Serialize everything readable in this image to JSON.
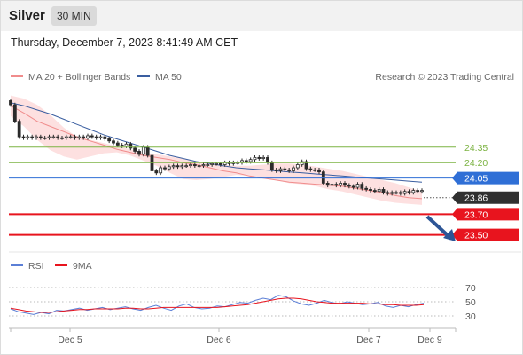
{
  "header": {
    "symbol": "Silver",
    "timeframe": "30 MIN",
    "datetime": "Thursday, December 7, 2023 8:41:49 AM CET"
  },
  "legend": {
    "ma20": "MA 20 + Bollinger Bands",
    "ma50": "MA 50",
    "copyright": "Research © 2023 Trading Central",
    "rsi": "RSI",
    "rsi_ma": "9MA"
  },
  "colors": {
    "ma20": "#f08c8c",
    "ma50": "#3a5ea0",
    "band_fill": "#fde0e0",
    "candle": "#2b2b2b",
    "resistance": "#7cb342",
    "pivot": "#2f6fd6",
    "support": "#e8141e",
    "last": "#303030",
    "rsi": "#5b7fd6",
    "rsi_ma": "#e8141e",
    "arrow": "#2d5596"
  },
  "chart_data": [
    {
      "type": "candlestick",
      "title": "Silver",
      "timeframe": "30 MIN",
      "x": {
        "ticks": [
          "Dec 5",
          "Dec 6",
          "Dec 7",
          "Dec 9"
        ]
      },
      "ylim": [
        23.35,
        24.95
      ],
      "ma20": [
        24.75,
        24.68,
        24.6,
        24.55,
        24.5,
        24.45,
        24.41,
        24.37,
        24.33,
        24.3,
        24.27,
        24.25,
        24.23,
        24.2,
        24.18,
        24.15,
        24.12,
        24.1,
        24.07,
        24.05,
        24.03,
        24.01,
        24.0,
        23.99,
        23.98,
        23.97,
        23.95,
        23.93,
        23.91,
        23.88,
        23.86,
        23.85
      ],
      "ma50": [
        24.78,
        24.75,
        24.71,
        24.67,
        24.62,
        24.57,
        24.52,
        24.47,
        24.43,
        24.39,
        24.35,
        24.31,
        24.27,
        24.24,
        24.21,
        24.19,
        24.17,
        24.15,
        24.14,
        24.13,
        24.12,
        24.11,
        24.1,
        24.09,
        24.08,
        24.07,
        24.06,
        24.05,
        24.04,
        24.03,
        24.02,
        24.01
      ],
      "bollinger_upper": [
        24.85,
        24.82,
        24.76,
        24.66,
        24.54,
        24.45,
        24.42,
        24.39,
        24.36,
        24.33,
        24.3,
        24.28,
        24.26,
        24.24,
        24.21,
        24.19,
        24.18,
        24.17,
        24.17,
        24.18,
        24.19,
        24.19,
        24.18,
        24.16,
        24.14,
        24.12,
        24.09,
        24.06,
        24.03,
        24.0,
        23.96,
        23.92
      ],
      "bollinger_lower": [
        24.65,
        24.55,
        24.42,
        24.32,
        24.26,
        24.23,
        24.26,
        24.29,
        24.3,
        24.27,
        24.22,
        24.17,
        24.1,
        24.04,
        24.03,
        24.04,
        24.06,
        24.08,
        24.07,
        24.06,
        24.03,
        24.0,
        23.99,
        23.97,
        23.94,
        23.92,
        23.89,
        23.86,
        23.83,
        23.81,
        23.8,
        23.79
      ],
      "close": [
        24.76,
        24.6,
        24.45,
        24.44,
        24.45,
        24.44,
        24.45,
        24.44,
        24.44,
        24.45,
        24.45,
        24.44,
        24.44,
        24.45,
        24.45,
        24.44,
        24.45,
        24.44,
        24.46,
        24.45,
        24.44,
        24.45,
        24.43,
        24.41,
        24.39,
        24.37,
        24.36,
        24.38,
        24.34,
        24.31,
        24.28,
        24.35,
        24.27,
        24.12,
        24.1,
        24.15,
        24.14,
        24.16,
        24.17,
        24.16,
        24.17,
        24.17,
        24.18,
        24.17,
        24.17,
        24.18,
        24.18,
        24.19,
        24.19,
        24.18,
        24.2,
        24.19,
        24.2,
        24.2,
        24.22,
        24.21,
        24.23,
        24.25,
        24.24,
        24.25,
        24.2,
        24.13,
        24.12,
        24.14,
        24.13,
        24.12,
        24.15,
        24.18,
        24.21,
        24.14,
        24.13,
        24.13,
        24.11,
        24.0,
        23.98,
        23.99,
        23.98,
        24.0,
        23.98,
        23.97,
        23.96,
        23.99,
        23.95,
        23.94,
        23.93,
        23.92,
        23.94,
        23.91,
        23.9,
        23.91,
        23.91,
        23.9,
        23.92,
        23.91,
        23.93,
        23.92,
        23.93
      ]
    },
    {
      "type": "levels",
      "resistance": [
        24.35,
        24.2
      ],
      "pivot": 24.05,
      "last": 23.86,
      "support": [
        23.7,
        23.5
      ]
    },
    {
      "type": "line",
      "title": "RSI",
      "ylim": [
        20,
        80
      ],
      "ticks": [
        70,
        50,
        30
      ],
      "series": [
        {
          "name": "RSI",
          "values": [
            40,
            36,
            34,
            32,
            35,
            33,
            38,
            37,
            39,
            41,
            38,
            40,
            42,
            39,
            41,
            43,
            40,
            38,
            42,
            45,
            41,
            38,
            44,
            47,
            42,
            40,
            41,
            44,
            43,
            46,
            49,
            48,
            52,
            55,
            53,
            59,
            57,
            51,
            47,
            45,
            48,
            52,
            49,
            47,
            50,
            48,
            46,
            47,
            49,
            44,
            42,
            45,
            43,
            46,
            48
          ]
        },
        {
          "name": "9MA",
          "values": [
            41,
            39,
            37,
            36,
            35,
            35,
            36,
            37,
            38,
            39,
            39,
            40,
            40,
            40,
            40,
            41,
            41,
            40,
            40,
            41,
            42,
            42,
            42,
            42,
            42,
            42,
            42,
            42,
            43,
            44,
            45,
            46,
            48,
            50,
            52,
            54,
            55,
            55,
            54,
            52,
            50,
            49,
            48,
            48,
            48,
            48,
            48,
            47,
            47,
            46,
            46,
            45,
            45,
            45,
            46
          ]
        }
      ]
    }
  ]
}
